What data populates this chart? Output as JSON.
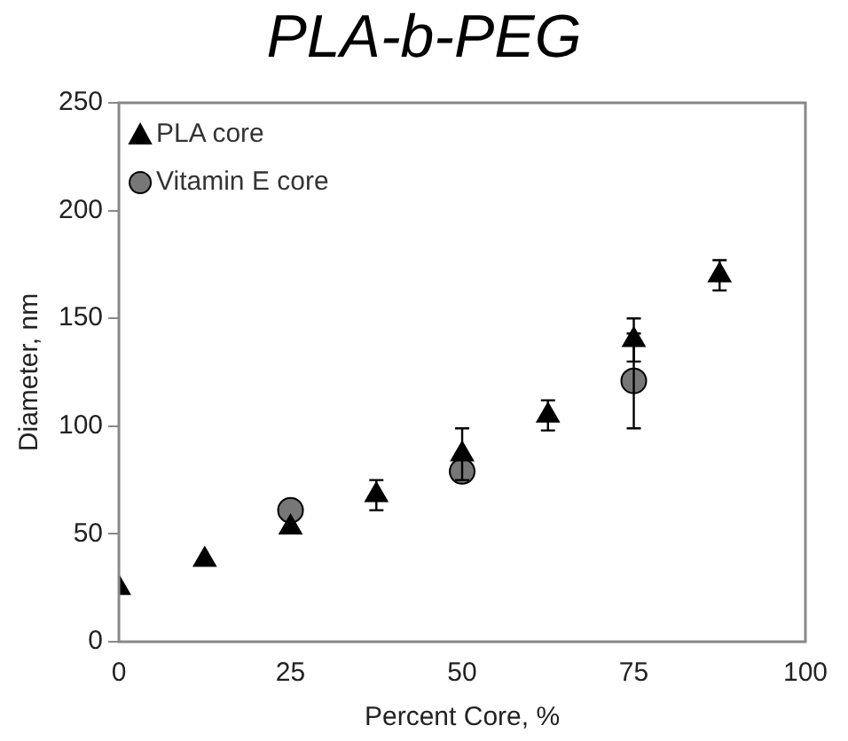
{
  "chart_data": {
    "type": "scatter",
    "title": "PLA-b-PEG",
    "xlabel": "Percent Core, %",
    "ylabel": "Diameter, nm",
    "xlim": [
      0,
      100
    ],
    "xticks": [
      0,
      25,
      50,
      75,
      100
    ],
    "ylim": [
      0,
      250
    ],
    "yticks": [
      0,
      50,
      100,
      150,
      200,
      250
    ],
    "grid": false,
    "legend": "top left",
    "series": [
      {
        "name": "PLA core",
        "color": "#000000",
        "marker": "triangle",
        "x": [
          0,
          12.5,
          25,
          37.5,
          50,
          62.5,
          75,
          87.5
        ],
        "values": [
          25,
          38,
          53,
          68,
          87,
          105,
          140,
          170
        ],
        "errors": [
          null,
          null,
          null,
          7,
          12,
          7,
          10,
          7
        ]
      },
      {
        "name": "Vitamin E core",
        "color": "#777777",
        "marker": "circle",
        "x": [
          25,
          50,
          75
        ],
        "values": [
          61,
          79,
          121
        ],
        "errors": [
          null,
          null,
          22
        ]
      }
    ]
  }
}
